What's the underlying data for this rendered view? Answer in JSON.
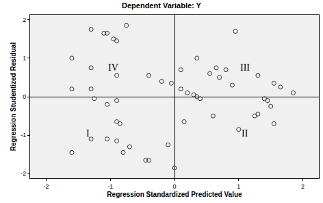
{
  "chart_data": {
    "type": "scatter",
    "title": "Dependent Variable: Y",
    "x_label": "Regression Standardized Predicted Value",
    "y_label": "Regression Studentized Residual",
    "x": [
      -1.6,
      -1.6,
      -1.3,
      -1.3,
      -1.3,
      -1.1,
      -1.05,
      -0.95,
      -0.9,
      -0.75,
      -0.9,
      -0.4,
      -0.2,
      -0.05,
      -1.6,
      -1.25,
      -1.05,
      -0.9,
      -0.9,
      -0.85,
      -1.3,
      -1.05,
      -0.9,
      -0.8,
      -0.7,
      -0.45,
      -0.4,
      -0.1,
      0.0,
      0.1,
      0.1,
      0.2,
      0.3,
      0.35,
      0.4,
      0.35,
      0.55,
      0.65,
      0.7,
      0.8,
      0.9,
      0.95,
      1.3,
      1.55,
      1.65,
      1.85,
      0.15,
      0.6,
      1.0,
      1.25,
      1.3,
      1.4,
      1.45,
      1.5,
      1.55
    ],
    "values": [
      1.0,
      0.2,
      1.75,
      0.75,
      0.2,
      1.65,
      1.65,
      1.5,
      1.45,
      1.85,
      0.55,
      0.55,
      0.4,
      0.35,
      -1.45,
      -0.05,
      -0.2,
      -0.1,
      -0.65,
      -0.7,
      -1.1,
      -1.1,
      -1.15,
      -1.45,
      -1.3,
      -1.65,
      -1.65,
      -1.25,
      -1.85,
      0.7,
      0.2,
      0.1,
      0.05,
      0.0,
      -0.05,
      1.0,
      0.6,
      0.75,
      0.5,
      0.7,
      0.3,
      1.7,
      0.55,
      0.35,
      0.25,
      0.1,
      -0.65,
      -0.5,
      -0.85,
      -0.5,
      -0.45,
      -0.05,
      -0.1,
      -0.25,
      -0.7
    ],
    "color": "#333333",
    "marker": "circle-open",
    "xlim": [
      -2.25,
      2.25
    ],
    "ylim": [
      -2.12,
      2.12
    ],
    "xticks": [
      -2,
      -1,
      0,
      1,
      2
    ],
    "yticks": [
      -2,
      -1,
      0,
      1,
      2
    ],
    "grid": false,
    "annotations": [
      {
        "text": "IV",
        "x": -0.95,
        "y": 0.75
      },
      {
        "text": "III",
        "x": 1.1,
        "y": 0.75
      },
      {
        "text": "I",
        "x": -1.35,
        "y": -0.95
      },
      {
        "text": "II",
        "x": 1.1,
        "y": -0.95
      }
    ]
  }
}
